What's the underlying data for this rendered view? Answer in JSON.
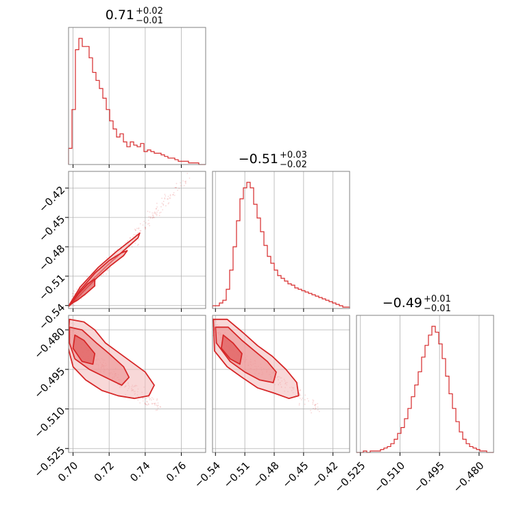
{
  "colors": {
    "series": "#d62728",
    "grid": "#b0b0b0",
    "frame": "#808080"
  },
  "chart_data": {
    "type": "corner",
    "description_parameters": 3,
    "grid": true,
    "parameters": [
      {
        "index": 0,
        "median": 0.71,
        "err_plus": 0.02,
        "err_minus": 0.01,
        "title_main": "0.71",
        "title_plus": "+0.02",
        "title_minus": "−0.01",
        "range": [
          0.6975,
          0.7735
        ],
        "ticks": [
          0.7,
          0.72,
          0.74,
          0.76
        ],
        "tick_labels": [
          "0.70",
          "0.72",
          "0.74",
          "0.76"
        ]
      },
      {
        "index": 1,
        "median": -0.51,
        "err_plus": 0.03,
        "err_minus": 0.02,
        "title_main": "−0.51",
        "title_plus": "+0.03",
        "title_minus": "−0.02",
        "range": [
          -0.543,
          -0.403
        ],
        "ticks": [
          -0.54,
          -0.51,
          -0.48,
          -0.45,
          -0.42
        ],
        "tick_labels": [
          "−0.54",
          "−0.51",
          "−0.48",
          "−0.45",
          "−0.42"
        ]
      },
      {
        "index": 2,
        "median": -0.49,
        "err_plus": 0.01,
        "err_minus": 0.01,
        "title_main": "−0.49",
        "title_plus": "+0.01",
        "title_minus": "−0.01",
        "range": [
          -0.5265,
          -0.4745
        ],
        "ticks": [
          -0.525,
          -0.51,
          -0.495,
          -0.48
        ],
        "tick_labels": [
          "−0.525",
          "−0.510",
          "−0.495",
          "−0.480"
        ]
      }
    ],
    "histograms": [
      {
        "param": 0,
        "bins": 40,
        "counts": [
          10,
          34,
          71,
          78,
          73,
          73,
          66,
          57,
          52,
          47,
          41,
          34,
          27,
          22,
          17,
          19,
          14,
          11,
          14,
          12,
          11,
          13,
          8,
          9,
          8,
          7,
          7,
          6,
          5,
          4,
          4,
          3,
          2,
          2,
          2,
          1,
          1,
          1,
          0,
          0
        ]
      },
      {
        "param": 1,
        "bins": 40,
        "counts": [
          2,
          2,
          4,
          6,
          14,
          28,
          45,
          64,
          80,
          88,
          92,
          88,
          76,
          66,
          56,
          46,
          38,
          33,
          28,
          24,
          22,
          20,
          18,
          17,
          15,
          14,
          13,
          12,
          11,
          10,
          9,
          8,
          7,
          6,
          5,
          4,
          3,
          2,
          1,
          1
        ]
      },
      {
        "param": 2,
        "bins": 40,
        "counts": [
          0,
          0,
          1,
          0,
          1,
          1,
          1,
          2,
          3,
          4,
          6,
          9,
          13,
          17,
          23,
          30,
          38,
          46,
          55,
          65,
          73,
          80,
          86,
          82,
          74,
          64,
          52,
          40,
          30,
          21,
          14,
          9,
          6,
          4,
          3,
          2,
          1,
          1,
          0,
          0
        ]
      }
    ],
    "joint_2d": [
      {
        "x_param": 0,
        "y_param": 1,
        "ridge": [
          [
            0.699,
            -0.536
          ],
          [
            0.703,
            -0.53
          ],
          [
            0.707,
            -0.522
          ],
          [
            0.712,
            -0.512
          ],
          [
            0.717,
            -0.503
          ],
          [
            0.722,
            -0.493
          ],
          [
            0.727,
            -0.483
          ],
          [
            0.732,
            -0.473
          ],
          [
            0.737,
            -0.463
          ],
          [
            0.742,
            -0.453
          ],
          [
            0.747,
            -0.443
          ],
          [
            0.752,
            -0.432
          ],
          [
            0.758,
            -0.421
          ],
          [
            0.764,
            -0.41
          ]
        ],
        "contour_1sigma": [
          [
            0.699,
            -0.538
          ],
          [
            0.703,
            -0.528
          ],
          [
            0.708,
            -0.518
          ],
          [
            0.712,
            -0.513
          ],
          [
            0.712,
            -0.52
          ],
          [
            0.707,
            -0.528
          ],
          [
            0.702,
            -0.535
          ]
        ],
        "contour_2sigma": [
          [
            0.698,
            -0.54
          ],
          [
            0.704,
            -0.524
          ],
          [
            0.712,
            -0.507
          ],
          [
            0.72,
            -0.494
          ],
          [
            0.727,
            -0.486
          ],
          [
            0.73,
            -0.484
          ],
          [
            0.728,
            -0.489
          ],
          [
            0.721,
            -0.499
          ],
          [
            0.713,
            -0.512
          ],
          [
            0.706,
            -0.525
          ],
          [
            0.7,
            -0.537
          ]
        ],
        "contour_3sigma": [
          [
            0.697,
            -0.542
          ],
          [
            0.704,
            -0.521
          ],
          [
            0.714,
            -0.501
          ],
          [
            0.724,
            -0.485
          ],
          [
            0.733,
            -0.472
          ],
          [
            0.737,
            -0.466
          ],
          [
            0.736,
            -0.471
          ],
          [
            0.728,
            -0.484
          ],
          [
            0.719,
            -0.499
          ],
          [
            0.71,
            -0.515
          ],
          [
            0.702,
            -0.53
          ],
          [
            0.698,
            -0.54
          ]
        ]
      },
      {
        "x_param": 0,
        "y_param": 2,
        "ridge": [
          [
            0.699,
            -0.479
          ],
          [
            0.703,
            -0.485
          ],
          [
            0.707,
            -0.488
          ],
          [
            0.712,
            -0.491
          ],
          [
            0.717,
            -0.494
          ],
          [
            0.722,
            -0.497
          ],
          [
            0.727,
            -0.5
          ],
          [
            0.732,
            -0.502
          ],
          [
            0.737,
            -0.505
          ],
          [
            0.742,
            -0.507
          ],
          [
            0.748,
            -0.509
          ]
        ],
        "contour_1sigma": [
          [
            0.701,
            -0.482
          ],
          [
            0.706,
            -0.484
          ],
          [
            0.712,
            -0.489
          ],
          [
            0.711,
            -0.493
          ],
          [
            0.705,
            -0.492
          ],
          [
            0.7,
            -0.487
          ]
        ],
        "contour_2sigma": [
          [
            0.698,
            -0.479
          ],
          [
            0.705,
            -0.48
          ],
          [
            0.713,
            -0.485
          ],
          [
            0.72,
            -0.489
          ],
          [
            0.728,
            -0.494
          ],
          [
            0.731,
            -0.498
          ],
          [
            0.727,
            -0.501
          ],
          [
            0.718,
            -0.498
          ],
          [
            0.709,
            -0.495
          ],
          [
            0.701,
            -0.491
          ],
          [
            0.698,
            -0.485
          ]
        ],
        "contour_3sigma": [
          [
            0.698,
            -0.476
          ],
          [
            0.706,
            -0.477
          ],
          [
            0.712,
            -0.48
          ],
          [
            0.718,
            -0.485
          ],
          [
            0.726,
            -0.489
          ],
          [
            0.734,
            -0.493
          ],
          [
            0.74,
            -0.496
          ],
          [
            0.745,
            -0.501
          ],
          [
            0.742,
            -0.505
          ],
          [
            0.734,
            -0.506
          ],
          [
            0.725,
            -0.505
          ],
          [
            0.716,
            -0.503
          ],
          [
            0.707,
            -0.499
          ],
          [
            0.7,
            -0.494
          ],
          [
            0.697,
            -0.486
          ]
        ]
      },
      {
        "x_param": 1,
        "y_param": 2,
        "ridge": [
          [
            -0.541,
            -0.478
          ],
          [
            -0.533,
            -0.483
          ],
          [
            -0.524,
            -0.487
          ],
          [
            -0.514,
            -0.49
          ],
          [
            -0.504,
            -0.493
          ],
          [
            -0.494,
            -0.495
          ],
          [
            -0.484,
            -0.497
          ],
          [
            -0.474,
            -0.5
          ],
          [
            -0.464,
            -0.502
          ],
          [
            -0.454,
            -0.505
          ],
          [
            -0.444,
            -0.507
          ],
          [
            -0.434,
            -0.51
          ]
        ],
        "contour_1sigma": [
          [
            -0.532,
            -0.482
          ],
          [
            -0.522,
            -0.485
          ],
          [
            -0.513,
            -0.489
          ],
          [
            -0.515,
            -0.493
          ],
          [
            -0.525,
            -0.491
          ],
          [
            -0.534,
            -0.487
          ]
        ],
        "contour_2sigma": [
          [
            -0.54,
            -0.479
          ],
          [
            -0.527,
            -0.479
          ],
          [
            -0.513,
            -0.484
          ],
          [
            -0.5,
            -0.488
          ],
          [
            -0.487,
            -0.492
          ],
          [
            -0.478,
            -0.496
          ],
          [
            -0.481,
            -0.5
          ],
          [
            -0.495,
            -0.499
          ],
          [
            -0.51,
            -0.496
          ],
          [
            -0.525,
            -0.492
          ],
          [
            -0.539,
            -0.485
          ]
        ],
        "contour_3sigma": [
          [
            -0.542,
            -0.476
          ],
          [
            -0.528,
            -0.476
          ],
          [
            -0.512,
            -0.481
          ],
          [
            -0.497,
            -0.486
          ],
          [
            -0.482,
            -0.49
          ],
          [
            -0.468,
            -0.495
          ],
          [
            -0.457,
            -0.5
          ],
          [
            -0.455,
            -0.505
          ],
          [
            -0.465,
            -0.506
          ],
          [
            -0.48,
            -0.504
          ],
          [
            -0.497,
            -0.502
          ],
          [
            -0.513,
            -0.498
          ],
          [
            -0.528,
            -0.494
          ],
          [
            -0.541,
            -0.488
          ]
        ]
      }
    ]
  }
}
